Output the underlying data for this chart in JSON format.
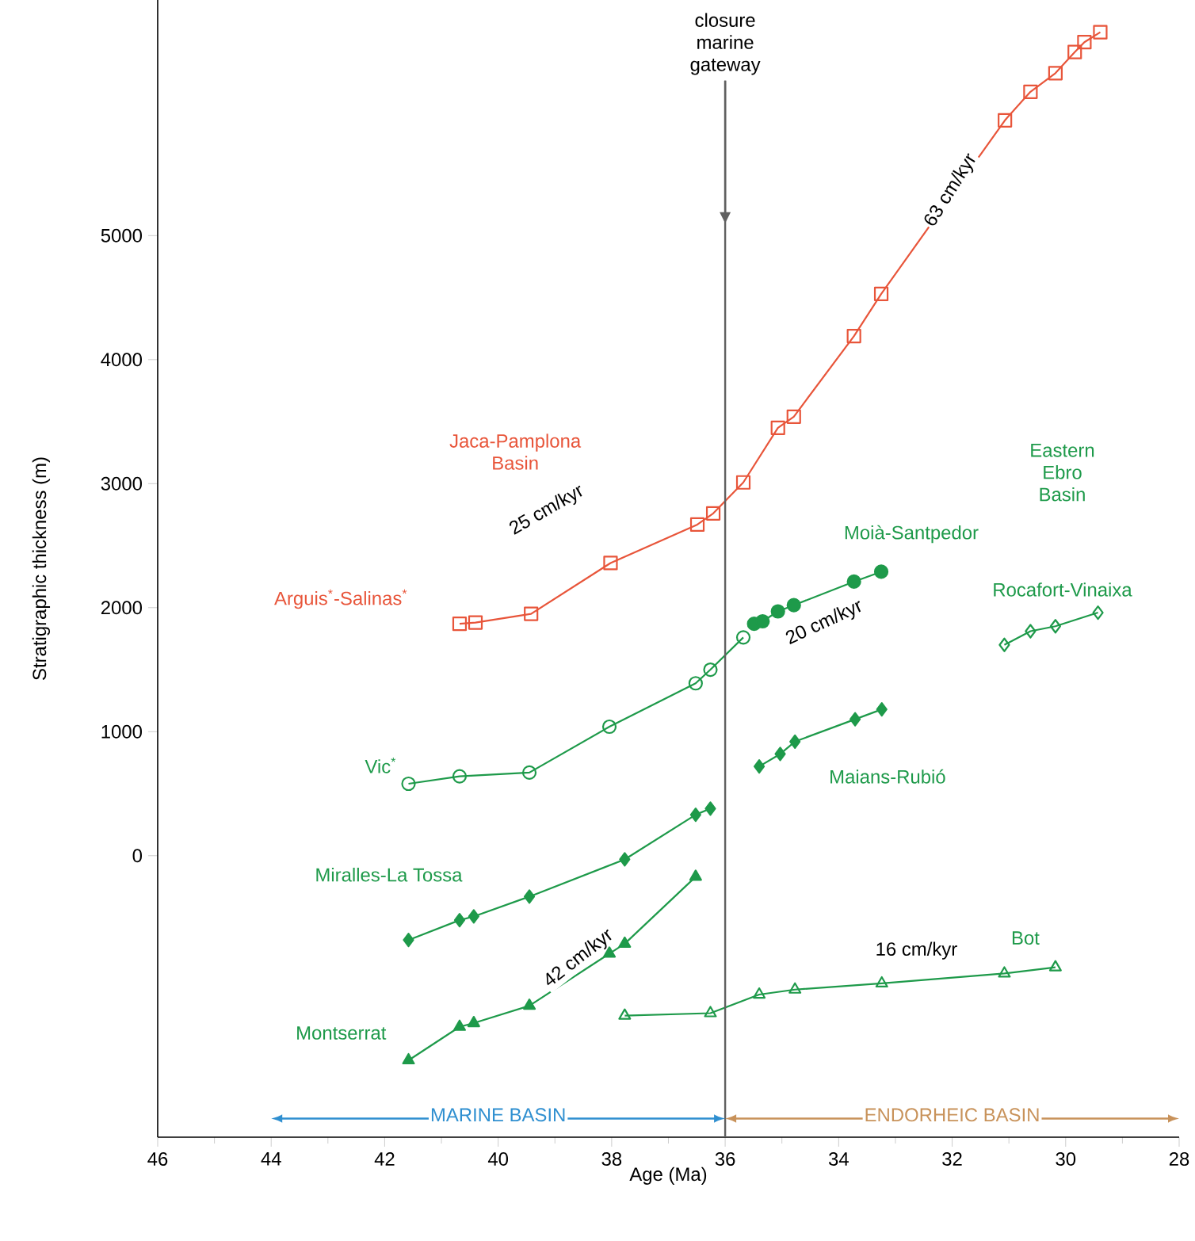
{
  "chart_data": {
    "type": "line",
    "xlabel": "Age (Ma)",
    "ylabel": "Stratigraphic thickness (m)",
    "xlim": [
      46,
      28
    ],
    "xticks": [
      46,
      44,
      42,
      40,
      38,
      36,
      34,
      32,
      30,
      28
    ],
    "ylim": [
      -2270,
      6900
    ],
    "yticks": [
      0,
      1000,
      2000,
      3000,
      4000,
      5000
    ],
    "series": [
      {
        "name": "Arguis$^{*}$-Salinas$^{*}$",
        "color": "#e8553a",
        "marker": "square",
        "x": [
          40.68,
          40.4,
          39.42,
          38.02,
          36.49,
          36.21,
          35.68,
          35.07,
          34.79,
          33.73,
          33.25,
          31.07,
          30.62,
          30.18,
          29.84,
          29.67,
          29.39
        ],
        "values": [
          1870,
          1880,
          1950,
          2360,
          2670,
          2760,
          3010,
          3450,
          3540,
          4190,
          4530,
          5930,
          6160,
          6310,
          6480,
          6560,
          6640
        ]
      },
      {
        "name": "Vic$^{*}$",
        "color": "#1e9a4a",
        "marker": "circle",
        "x": [
          41.58,
          40.68,
          39.45,
          38.04,
          36.52,
          36.26,
          35.68
        ],
        "values": [
          580,
          640,
          670,
          1040,
          1390,
          1500,
          1760
        ]
      },
      {
        "name": "Moià-Santpedor",
        "color": "#1e9a4a",
        "marker": "circle",
        "x": [
          35.49,
          35.34,
          35.07,
          34.79,
          33.73,
          33.25
        ],
        "values": [
          1870,
          1890,
          1970,
          2020,
          2210,
          2290
        ]
      },
      {
        "name": "Miralles-La Tossa",
        "color": "#1e9a4a",
        "marker": "diamond",
        "x": [
          41.58,
          40.68,
          40.43,
          39.45,
          37.77,
          36.52,
          36.26
        ],
        "values": [
          -680,
          -520,
          -490,
          -330,
          -30,
          330,
          380
        ]
      },
      {
        "name": "Maians-Rubió",
        "color": "#1e9a4a",
        "marker": "diamond",
        "x": [
          35.4,
          35.03,
          34.77,
          33.71,
          33.24
        ],
        "values": [
          720,
          820,
          920,
          1100,
          1180
        ]
      },
      {
        "name": "Rocafort-Vinaixa",
        "color": "#1e9a4a",
        "marker": "diamond",
        "x": [
          31.08,
          30.62,
          30.18,
          29.43
        ],
        "values": [
          1700,
          1810,
          1850,
          1960
        ]
      },
      {
        "name": "Montserrat",
        "color": "#1e9a4a",
        "marker": "triangle",
        "x": [
          41.58,
          40.68,
          40.43,
          39.45,
          38.04,
          37.77,
          36.52
        ],
        "values": [
          -1650,
          -1380,
          -1350,
          -1210,
          -790,
          -710,
          -170
        ]
      },
      {
        "name": "Bot",
        "color": "#1e9a4a",
        "marker": "triangle",
        "x": [
          37.77,
          36.26,
          35.4,
          34.77,
          33.24,
          31.08,
          30.18
        ],
        "values": [
          -1290,
          -1270,
          -1120,
          -1080,
          -1030,
          -950,
          -900
        ]
      }
    ],
    "ref_lines": [
      {
        "axis": "x",
        "value": 36,
        "label": "closure marine gateway",
        "color": "#606060"
      }
    ],
    "annotations": [
      "Jaca-Pamplona Basin",
      "Eastern Ebro Basin",
      "25 cm/kyr",
      "63 cm/kyr",
      "20 cm/kyr",
      "42 cm/kyr",
      "16 cm/kyr",
      "MARINE BASIN",
      "ENDORHEIC BASIN"
    ]
  }
}
